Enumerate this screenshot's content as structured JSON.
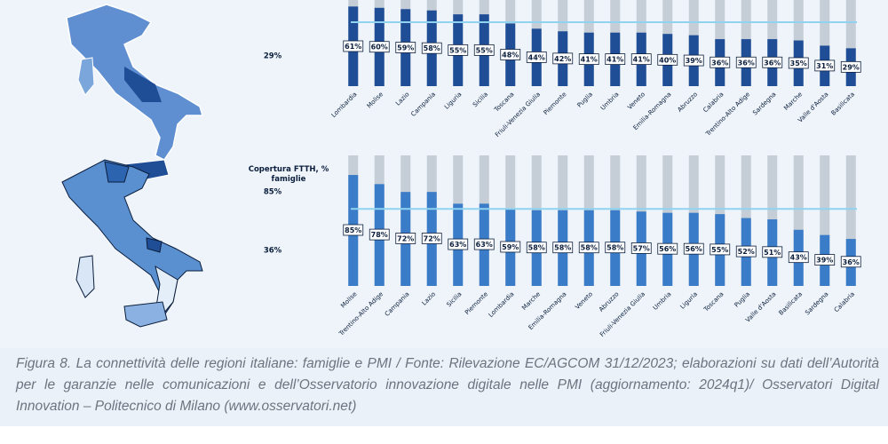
{
  "chart_data": [
    {
      "type": "bar",
      "legend_labels": [
        "29%"
      ],
      "categories": [
        "Lombardia",
        "Molise",
        "Lazio",
        "Campania",
        "Liguria",
        "Sicilia",
        "Toscana",
        "Friuli-Venezia Giulia",
        "Piemonte",
        "Puglia",
        "Umbria",
        "Veneto",
        "Emilia-Romagna",
        "Abruzzo",
        "Calabria",
        "Trentino-Alto Adige",
        "Sardegna",
        "Marche",
        "Valle d'Aosta",
        "Basilicata"
      ],
      "values": [
        61,
        60,
        59,
        58,
        55,
        55,
        48,
        44,
        42,
        41,
        41,
        41,
        40,
        39,
        36,
        36,
        36,
        35,
        31,
        29
      ],
      "value_labels": [
        "61%",
        "60%",
        "59%",
        "58%",
        "55%",
        "55%",
        "48%",
        "44%",
        "42%",
        "41%",
        "41%",
        "41%",
        "40%",
        "39%",
        "36%",
        "36%",
        "36%",
        "35%",
        "31%",
        "29%"
      ],
      "color": "#1f4e96",
      "background_color": "#c5cdd6",
      "reference_line": 49,
      "reference_color": "#8fd3f0",
      "ylim": [
        0,
        100
      ]
    },
    {
      "type": "bar",
      "legend_title": "Copertura FTTH, % famiglie",
      "legend_labels": [
        "85%",
        "36%"
      ],
      "categories": [
        "Molise",
        "Trentino-Alto Adige",
        "Campania",
        "Lazio",
        "Sicilia",
        "Piemonte",
        "Lombardia",
        "Marche",
        "Emilia-Romagna",
        "Veneto",
        "Abruzzo",
        "Friuli-Venezia Giulia",
        "Umbria",
        "Liguria",
        "Toscana",
        "Puglia",
        "Valle d'Aosta",
        "Basilicata",
        "Sardegna",
        "Calabria"
      ],
      "values": [
        85,
        78,
        72,
        72,
        63,
        63,
        59,
        58,
        58,
        58,
        58,
        57,
        56,
        56,
        55,
        52,
        51,
        43,
        39,
        36
      ],
      "value_labels": [
        "85%",
        "78%",
        "72%",
        "72%",
        "63%",
        "63%",
        "59%",
        "58%",
        "58%",
        "58%",
        "58%",
        "57%",
        "56%",
        "56%",
        "55%",
        "52%",
        "51%",
        "43%",
        "39%",
        "36%"
      ],
      "color": "#3a7cc7",
      "background_color": "#c5cdd6",
      "reference_line": 59,
      "reference_color": "#8fd3f0",
      "ylim": [
        0,
        100
      ]
    }
  ],
  "caption": "Figura 8. La connettività delle regioni italiane: famiglie e PMI / Fonte: Rilevazione EC/AGCOM 31/12/2023; elaborazioni su dati dell’Autorità per le garanzie nelle comunicazioni e dell’Osservatorio innovazione digitale nelle PMI (aggiornamento: 2024q1)/ Osservatori Digital Innovation – Politecnico di Milano (www.osservatori.net)"
}
